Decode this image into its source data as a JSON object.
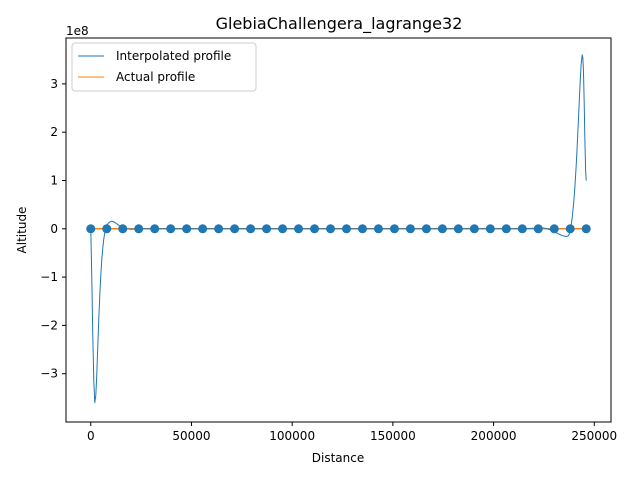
{
  "chart_data": {
    "type": "line",
    "title": "GlebiaChallengera_lagrange32",
    "xlabel": "Distance",
    "ylabel": "Altitude",
    "y_offset_label": "1e8",
    "xlim": [
      -12300,
      258300
    ],
    "ylim": [
      -4.0,
      3.95
    ],
    "y_unit_multiplier": 100000000,
    "x_ticks": [
      {
        "value": 0,
        "label": "0"
      },
      {
        "value": 50000,
        "label": "50000"
      },
      {
        "value": 100000,
        "label": "100000"
      },
      {
        "value": 150000,
        "label": "150000"
      },
      {
        "value": 200000,
        "label": "200000"
      },
      {
        "value": 250000,
        "label": "250000"
      }
    ],
    "y_ticks": [
      {
        "value": -3,
        "label": "−3"
      },
      {
        "value": -2,
        "label": "−2"
      },
      {
        "value": -1,
        "label": "−1"
      },
      {
        "value": 0,
        "label": "0"
      },
      {
        "value": 1,
        "label": "1"
      },
      {
        "value": 2,
        "label": "2"
      },
      {
        "value": 3,
        "label": "3"
      }
    ],
    "legend": {
      "placement": "upper-left",
      "entries": [
        {
          "label": "Interpolated profile",
          "color": "#1f77b4"
        },
        {
          "label": "Actual profile",
          "color": "#ff7f0e"
        }
      ]
    },
    "series": [
      {
        "name": "Interpolated profile",
        "color": "#1f77b4",
        "x": [
          0,
          500,
          1000,
          1500,
          2000,
          2500,
          3000,
          3500,
          4000,
          4500,
          5000,
          5500,
          6000,
          6500,
          7000,
          7500,
          8000,
          9000,
          10000,
          11000,
          12000,
          13000,
          14000,
          15000,
          16000,
          18000,
          20000,
          25000,
          30000,
          215000,
          220000,
          224000,
          226000,
          228000,
          230000,
          232000,
          233000,
          234000,
          235000,
          236000,
          237000,
          237500,
          238000,
          238500,
          239000,
          239500,
          240000,
          240500,
          241000,
          241500,
          242000,
          242500,
          243000,
          243500,
          244000,
          244300,
          244600,
          245000,
          245300,
          245700,
          246000
        ],
        "y": [
          0,
          -1.0,
          -2.2,
          -3.15,
          -3.6,
          -3.45,
          -3.0,
          -2.4,
          -1.85,
          -1.35,
          -0.95,
          -0.62,
          -0.38,
          -0.2,
          -0.07,
          0.02,
          0.08,
          0.13,
          0.155,
          0.15,
          0.13,
          0.1,
          0.07,
          0.04,
          0.02,
          0.0,
          -0.01,
          0.0,
          0.0,
          0.0,
          0.01,
          0.02,
          0.01,
          -0.02,
          -0.06,
          -0.1,
          -0.12,
          -0.14,
          -0.15,
          -0.16,
          -0.15,
          -0.12,
          -0.03,
          0.08,
          0.22,
          0.42,
          0.65,
          0.95,
          1.3,
          1.7,
          2.15,
          2.6,
          3.05,
          3.42,
          3.6,
          3.55,
          3.3,
          2.6,
          1.9,
          1.2,
          1.0
        ]
      },
      {
        "name": "Actual profile",
        "color": "#ff7f0e",
        "x": [
          0,
          246000
        ],
        "y": [
          0,
          0
        ]
      }
    ],
    "points": {
      "color": "#1f77b4",
      "x": [
        0,
        7935,
        15871,
        23806,
        31742,
        39677,
        47613,
        55548,
        63484,
        71419,
        79355,
        87290,
        95226,
        103161,
        111097,
        119032,
        126968,
        134903,
        142839,
        150774,
        158710,
        166645,
        174581,
        182516,
        190452,
        198387,
        206323,
        214258,
        222194,
        230129,
        238065,
        246000
      ],
      "y": [
        0,
        0,
        0,
        0,
        0,
        0,
        0,
        0,
        0,
        0,
        0,
        0,
        0,
        0,
        0,
        0,
        0,
        0,
        0,
        0,
        0,
        0,
        0,
        0,
        0,
        0,
        0,
        0,
        0,
        0,
        0,
        0
      ]
    }
  }
}
